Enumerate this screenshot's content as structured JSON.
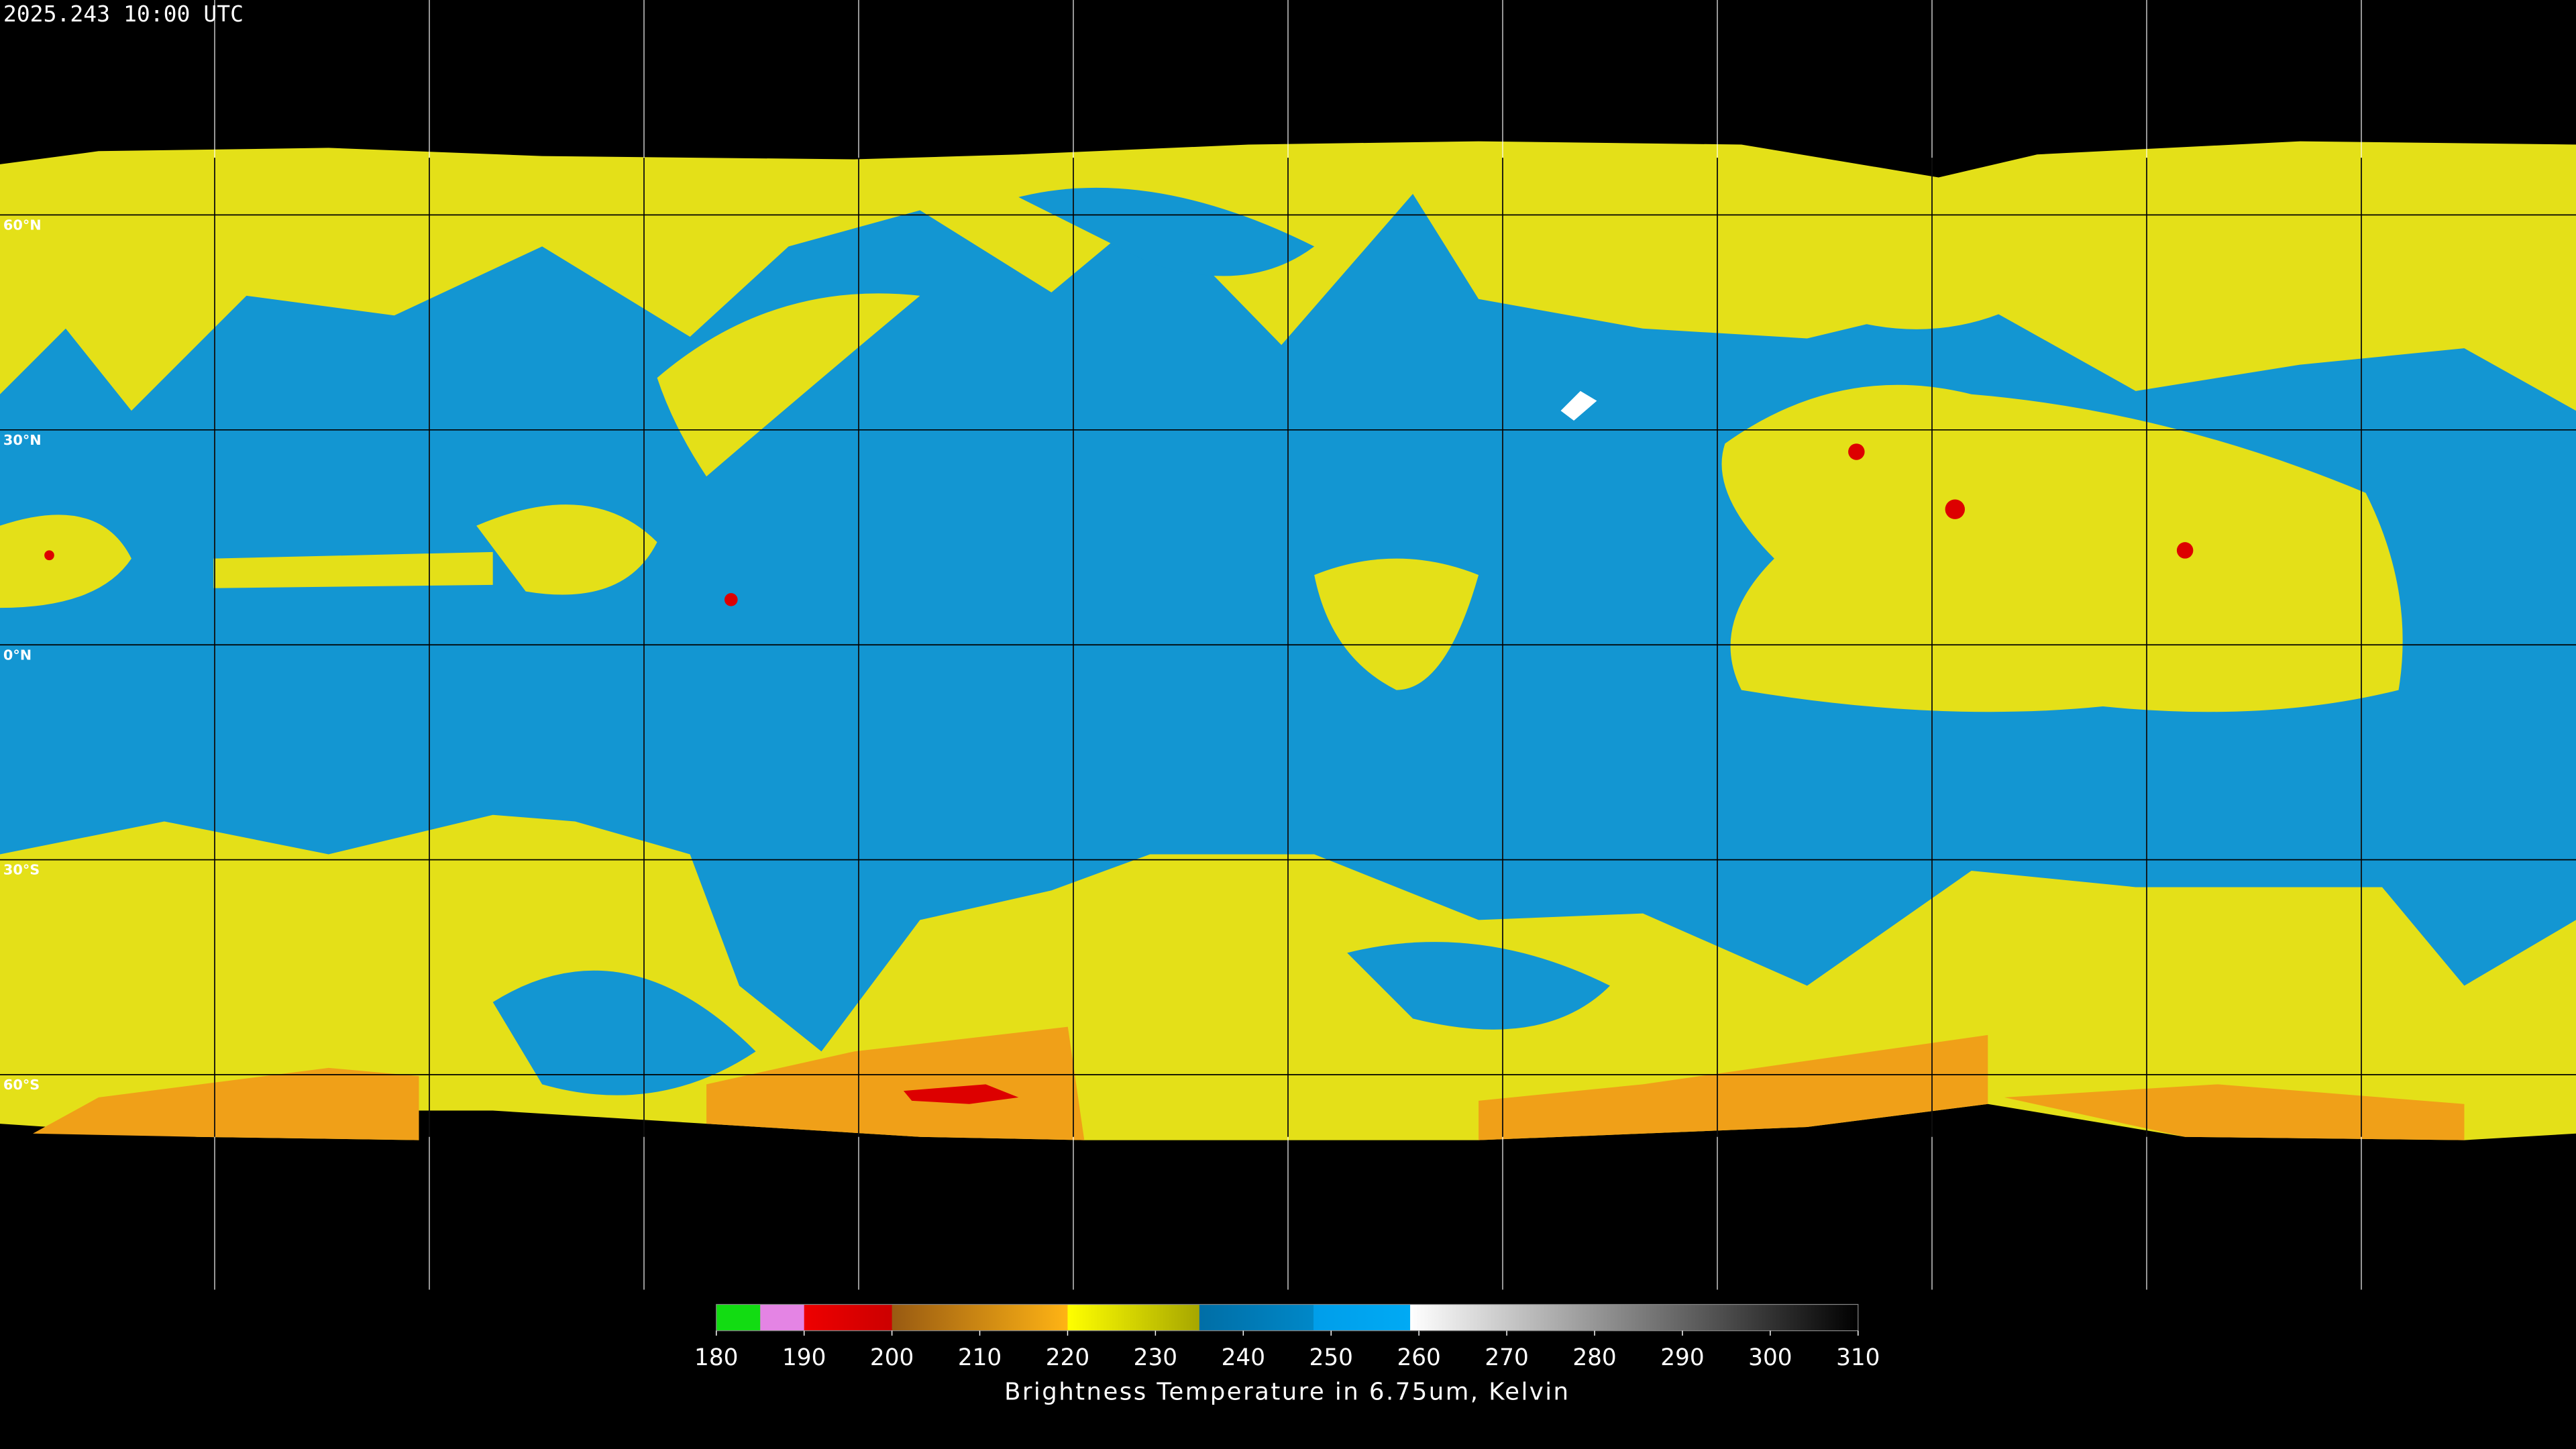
{
  "header": {
    "timestamp": "2025.243 10:00 UTC"
  },
  "latitude_labels": [
    "60°N",
    "30°N",
    "0°N",
    "30°S",
    "60°S"
  ],
  "colorbar": {
    "range": [
      180,
      310
    ],
    "ticks": [
      180,
      190,
      200,
      210,
      220,
      230,
      240,
      250,
      260,
      270,
      280,
      290,
      300,
      310
    ],
    "label": "Brightness Temperature in 6.75um, Kelvin",
    "segments": [
      {
        "from": 180,
        "to": 185,
        "colors": [
          "#12dc12",
          "#12dc12"
        ]
      },
      {
        "from": 185,
        "to": 190,
        "colors": [
          "#e484e4",
          "#e484e4"
        ]
      },
      {
        "from": 190,
        "to": 200,
        "colors": [
          "#ee0000",
          "#cc0000"
        ]
      },
      {
        "from": 200,
        "to": 220,
        "colors": [
          "#985a12",
          "#ffb414"
        ]
      },
      {
        "from": 220,
        "to": 235,
        "colors": [
          "#ffff00",
          "#a6a600"
        ]
      },
      {
        "from": 235,
        "to": 248,
        "colors": [
          "#006ea6",
          "#0088c8"
        ]
      },
      {
        "from": 248,
        "to": 259,
        "colors": [
          "#009eea",
          "#00aaf4"
        ]
      },
      {
        "from": 259,
        "to": 310,
        "colors": [
          "#ffffff",
          "#000000"
        ]
      }
    ]
  }
}
